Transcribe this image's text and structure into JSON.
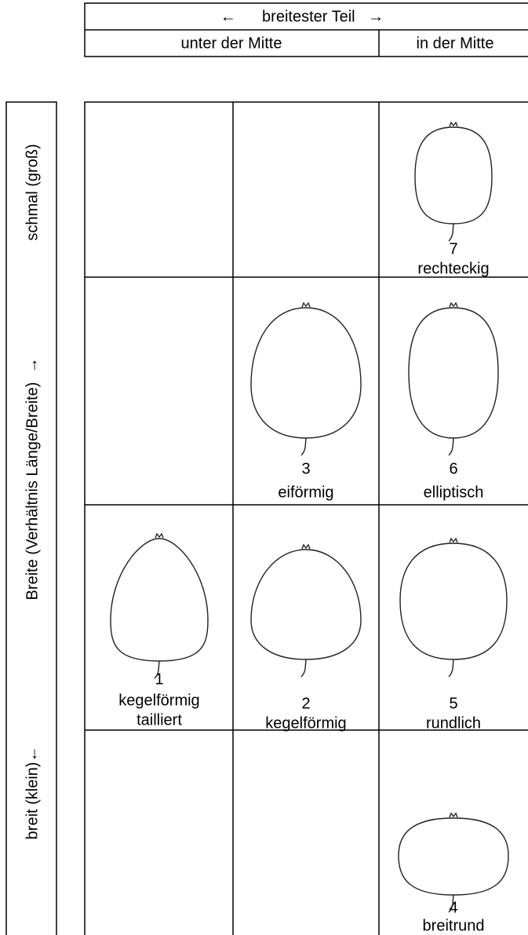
{
  "header": {
    "top": "←      breitester Teil   →",
    "left": "unter der Mitte",
    "right": "in der Mitte"
  },
  "side": {
    "top": "schmal (groß)",
    "middle": "Breite (Verhältnis Länge/Breite)  →",
    "bottom": "breit (klein)←"
  },
  "cells": [
    {
      "number": "7",
      "label": "rechteckig"
    },
    {
      "number": "3",
      "label": "eiförmig"
    },
    {
      "number": "6",
      "label": "elliptisch"
    },
    {
      "number": "1",
      "label": "kegelförmig",
      "label2": "tailliert"
    },
    {
      "number": "2",
      "label": "kegelförmig"
    },
    {
      "number": "5",
      "label": "rundlich"
    },
    {
      "number": "4",
      "label": "breitrund"
    }
  ]
}
